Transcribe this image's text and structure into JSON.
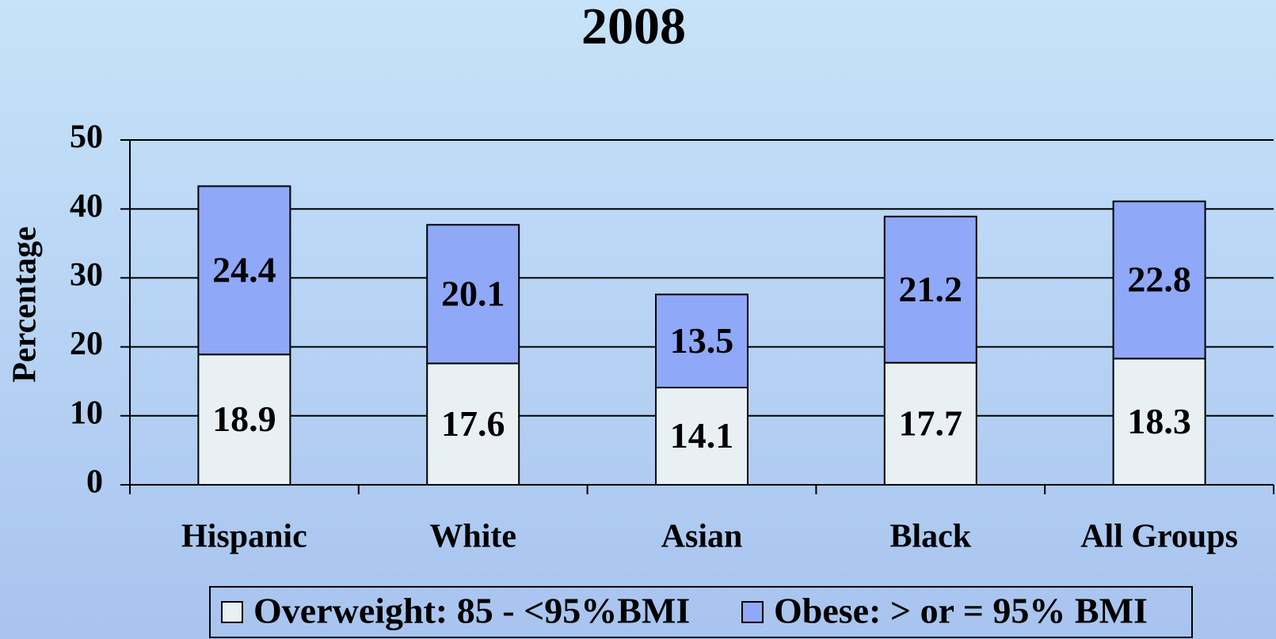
{
  "chart_data": {
    "type": "stacked_bar",
    "title": "2008",
    "y_label": "Percentage",
    "categories": [
      "Hispanic",
      "White",
      "Asian",
      "Black",
      "All Groups"
    ],
    "series": [
      {
        "name": "Overweight: 85 - <95%BMI",
        "color": "#e8f0f4",
        "values": [
          18.9,
          17.6,
          14.1,
          17.7,
          18.3
        ]
      },
      {
        "name": "Obese: > or = 95% BMI",
        "color": "#8fa8f8",
        "values": [
          24.4,
          20.1,
          13.5,
          21.2,
          22.8
        ]
      }
    ],
    "ylim": [
      0,
      50
    ],
    "yticks": [
      0,
      10,
      20,
      30,
      40,
      50
    ],
    "grid": true,
    "legend": "bottom"
  }
}
